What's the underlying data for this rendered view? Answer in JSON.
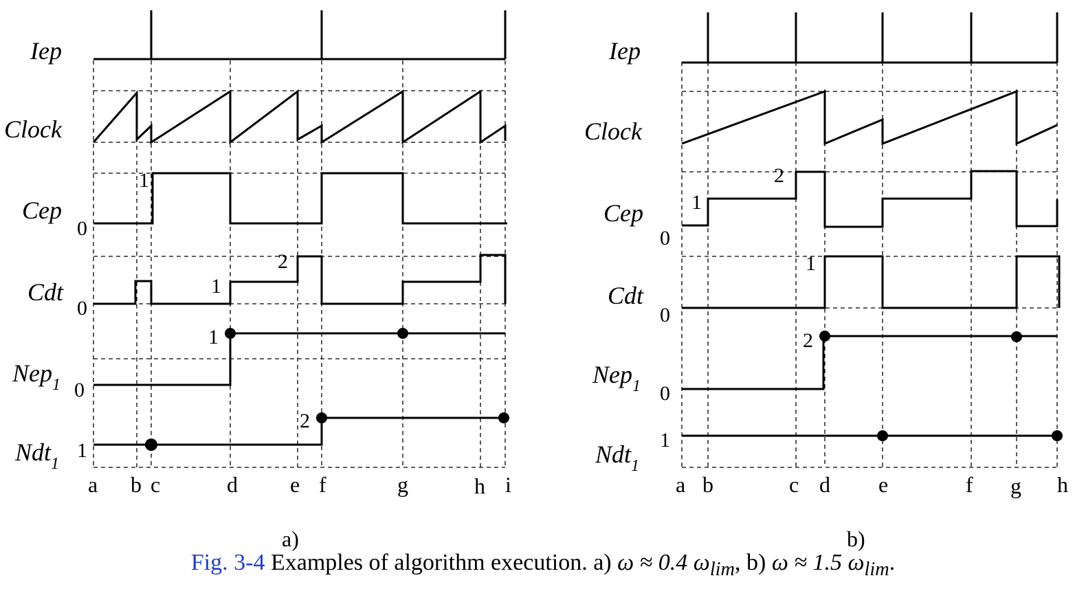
{
  "panels": [
    {
      "id": "a",
      "panel_label": "a)",
      "signals": [
        {
          "name": "Iep"
        },
        {
          "name": "Clock"
        },
        {
          "name": "Cep",
          "zero_label": "0",
          "annotations": [
            "1"
          ]
        },
        {
          "name": "Cdt",
          "zero_label": "0",
          "annotations": [
            "1",
            "2"
          ]
        },
        {
          "name": "Nep",
          "sub": "1",
          "zero_label": "0",
          "annotations": [
            "1"
          ]
        },
        {
          "name": "Ndt",
          "sub": "1",
          "zero_label": "1",
          "annotations": [
            "2"
          ]
        }
      ],
      "time_ticks": [
        "a",
        "b",
        "c",
        "d",
        "e",
        "f",
        "g",
        "h",
        "i"
      ]
    },
    {
      "id": "b",
      "panel_label": "b)",
      "signals": [
        {
          "name": "Iep"
        },
        {
          "name": "Clock"
        },
        {
          "name": "Cep",
          "zero_label": "0",
          "annotations": [
            "1",
            "2"
          ]
        },
        {
          "name": "Cdt",
          "zero_label": "0",
          "annotations": [
            "1"
          ]
        },
        {
          "name": "Nep",
          "sub": "1",
          "zero_label": "0",
          "annotations": [
            "2"
          ]
        },
        {
          "name": "Ndt",
          "sub": "1",
          "zero_label": "1",
          "annotations": []
        }
      ],
      "time_ticks": [
        "a",
        "b",
        "c",
        "d",
        "e",
        "f",
        "g",
        "h"
      ]
    }
  ],
  "caption": {
    "ref": "Fig. 3-4",
    "text": " Examples of algorithm execution. a) ",
    "formula_a": "ω ≈ 0.4 ω",
    "sub_a": "lim",
    "mid": ", b) ",
    "formula_b": "ω ≈ 1.5 ω",
    "sub_b": "lim",
    "end": "."
  }
}
